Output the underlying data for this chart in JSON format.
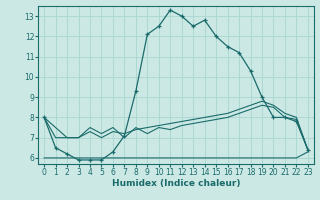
{
  "bg_color": "#cce8e4",
  "line_color": "#1a6b6b",
  "grid_color": "#aed8d2",
  "xlabel": "Humidex (Indice chaleur)",
  "ylim": [
    5.7,
    13.5
  ],
  "xlim": [
    -0.5,
    23.5
  ],
  "yticks": [
    6,
    7,
    8,
    9,
    10,
    11,
    12,
    13
  ],
  "xticks": [
    0,
    1,
    2,
    3,
    4,
    5,
    6,
    7,
    8,
    9,
    10,
    11,
    12,
    13,
    14,
    15,
    16,
    17,
    18,
    19,
    20,
    21,
    22,
    23
  ],
  "s0": [
    8.0,
    6.5,
    6.2,
    5.9,
    5.9,
    5.9,
    6.3,
    7.1,
    9.3,
    12.1,
    12.5,
    13.3,
    13.0,
    12.5,
    12.8,
    12.0,
    11.5,
    11.2,
    10.3,
    9.0,
    8.0,
    8.0,
    7.8,
    6.4
  ],
  "s1": [
    8.0,
    7.5,
    7.0,
    7.0,
    7.5,
    7.2,
    7.5,
    7.0,
    7.5,
    7.2,
    7.5,
    7.4,
    7.6,
    7.7,
    7.8,
    7.9,
    8.0,
    8.2,
    8.4,
    8.6,
    8.5,
    8.0,
    7.9,
    6.4
  ],
  "s2": [
    8.0,
    7.0,
    7.0,
    7.0,
    7.3,
    7.0,
    7.3,
    7.2,
    7.4,
    7.5,
    7.6,
    7.7,
    7.8,
    7.9,
    8.0,
    8.1,
    8.2,
    8.4,
    8.6,
    8.8,
    8.6,
    8.2,
    8.0,
    6.4
  ],
  "s3": [
    6.0,
    6.0,
    6.0,
    6.0,
    6.0,
    6.0,
    6.0,
    6.0,
    6.0,
    6.0,
    6.0,
    6.0,
    6.0,
    6.0,
    6.0,
    6.0,
    6.0,
    6.0,
    6.0,
    6.0,
    6.0,
    6.0,
    6.0,
    6.3
  ]
}
